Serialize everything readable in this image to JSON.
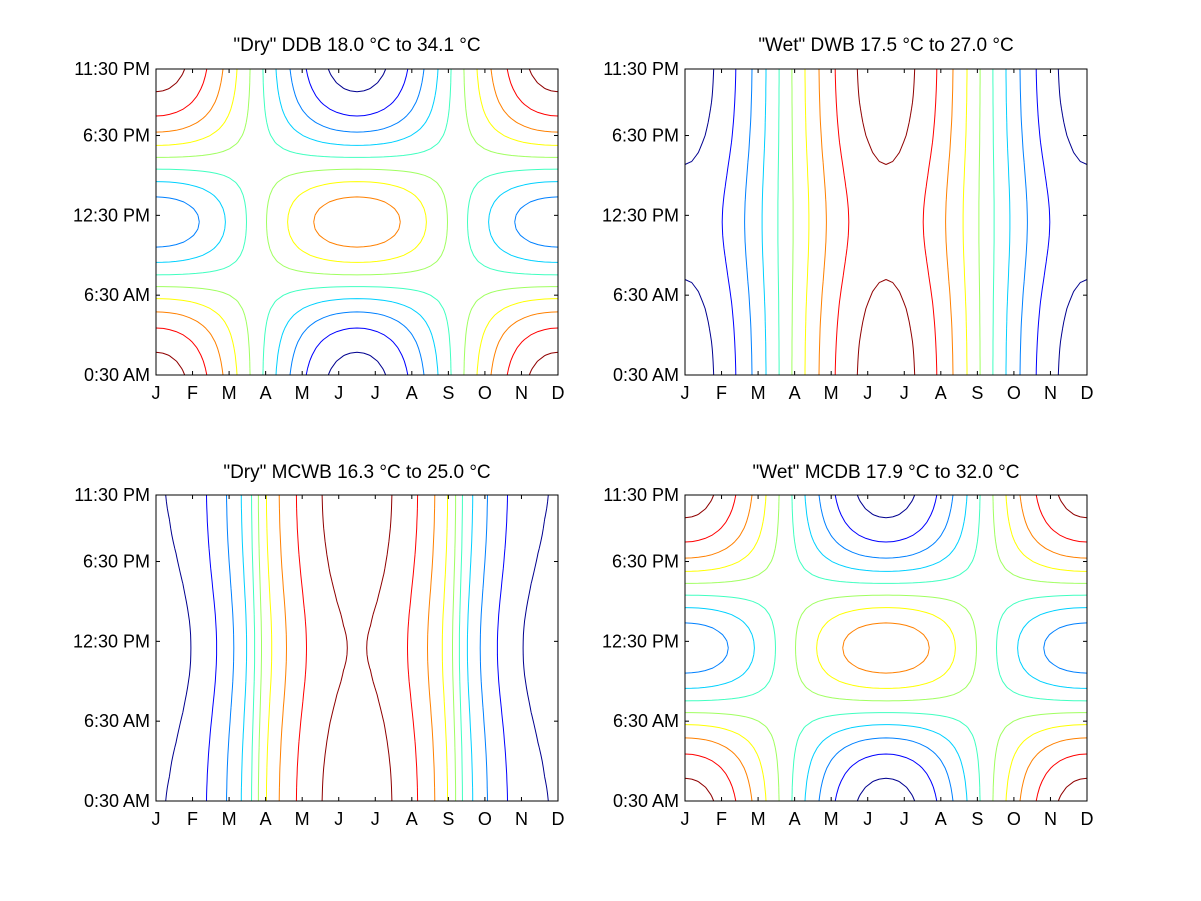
{
  "figure": {
    "background": "#ffffff",
    "colormap": [
      "#00008f",
      "#0000ff",
      "#0080ff",
      "#00d0ff",
      "#40ffc0",
      "#a0ff60",
      "#ffff00",
      "#ff8000",
      "#ff0000",
      "#8f0000"
    ]
  },
  "chart_data": [
    {
      "type": "contour",
      "title": "\"Dry\" DDB  18.0 °C to  34.1 °C",
      "x_ticks": [
        "J",
        "F",
        "M",
        "A",
        "M",
        "J",
        "J",
        "A",
        "S",
        "O",
        "N",
        "D"
      ],
      "y_ticks": [
        "0:30 AM",
        "6:30 AM",
        "12:30 PM",
        "6:30 PM",
        "11:30 PM"
      ],
      "x_values": [
        1,
        2,
        3,
        4,
        5,
        6,
        7,
        8,
        9,
        10,
        11,
        12
      ],
      "y_values": [
        0.5,
        6.5,
        12.5,
        18.5,
        23.5
      ],
      "z_range": [
        18.0,
        34.1
      ],
      "pattern": "saddle",
      "levels": 10,
      "grid": false
    },
    {
      "type": "contour",
      "title": "\"Wet\" DWB  17.5 °C to  27.0 °C",
      "x_ticks": [
        "J",
        "F",
        "M",
        "A",
        "M",
        "J",
        "J",
        "A",
        "S",
        "O",
        "N",
        "D"
      ],
      "y_ticks": [
        "0:30 AM",
        "6:30 AM",
        "12:30 PM",
        "6:30 PM",
        "11:30 PM"
      ],
      "x_values": [
        1,
        2,
        3,
        4,
        5,
        6,
        7,
        8,
        9,
        10,
        11,
        12
      ],
      "y_values": [
        0.5,
        6.5,
        12.5,
        18.5,
        23.5
      ],
      "z_range": [
        17.5,
        27.0
      ],
      "pattern": "seasonal",
      "levels": 10,
      "grid": false
    },
    {
      "type": "contour",
      "title": "\"Dry\" MCWB  16.3 °C to  25.0 °C",
      "x_ticks": [
        "J",
        "F",
        "M",
        "A",
        "M",
        "J",
        "J",
        "A",
        "S",
        "O",
        "N",
        "D"
      ],
      "y_ticks": [
        "0:30 AM",
        "6:30 AM",
        "12:30 PM",
        "6:30 PM",
        "11:30 PM"
      ],
      "x_values": [
        1,
        2,
        3,
        4,
        5,
        6,
        7,
        8,
        9,
        10,
        11,
        12
      ],
      "y_values": [
        0.5,
        6.5,
        12.5,
        18.5,
        23.5
      ],
      "z_range": [
        16.3,
        25.0
      ],
      "pattern": "seasonal-wide",
      "levels": 10,
      "grid": false
    },
    {
      "type": "contour",
      "title": "\"Wet\" MCDB  17.9 °C to  32.0 °C",
      "x_ticks": [
        "J",
        "F",
        "M",
        "A",
        "M",
        "J",
        "J",
        "A",
        "S",
        "O",
        "N",
        "D"
      ],
      "y_ticks": [
        "0:30 AM",
        "6:30 AM",
        "12:30 PM",
        "6:30 PM",
        "11:30 PM"
      ],
      "x_values": [
        1,
        2,
        3,
        4,
        5,
        6,
        7,
        8,
        9,
        10,
        11,
        12
      ],
      "y_values": [
        0.5,
        6.5,
        12.5,
        18.5,
        23.5
      ],
      "z_range": [
        17.9,
        32.0
      ],
      "pattern": "saddle",
      "levels": 10,
      "grid": false
    }
  ]
}
